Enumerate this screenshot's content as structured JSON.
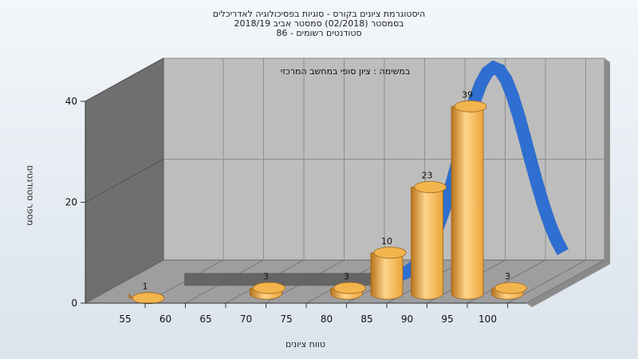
{
  "chart_data": {
    "type": "bar",
    "title_lines": [
      "היסטוגרמת ציונים בקורס - סוגיות בפסיכולוגיה לאדריכלים",
      "בסמסטר  (02/2018)  סמסטר אביב 2018/19",
      "סטודנטים רשומים - 86"
    ],
    "annotation": "במשימה : ציון סופי במחשב המרכזי",
    "xlabel": "טווח ציונים",
    "ylabel": "מספר סטודנטים",
    "x_ticks": [
      "55",
      "60",
      "65",
      "70",
      "75",
      "80",
      "85",
      "90",
      "95",
      "100"
    ],
    "y_ticks": [
      "0",
      "20",
      "40"
    ],
    "ylim": [
      0,
      40
    ],
    "bars": [
      {
        "x": 55,
        "value": 1
      },
      {
        "x": 70,
        "value": 3
      },
      {
        "x": 80,
        "value": 3
      },
      {
        "x": 85,
        "value": 10
      },
      {
        "x": 90,
        "value": 23
      },
      {
        "x": 95,
        "value": 39
      },
      {
        "x": 100,
        "value": 3
      }
    ],
    "curve": {
      "name": "",
      "color": "#2f6fd1"
    },
    "colors": {
      "bar": "#e9a53a",
      "bar_light": "#ffd58a",
      "bar_dark": "#b8731c"
    }
  }
}
